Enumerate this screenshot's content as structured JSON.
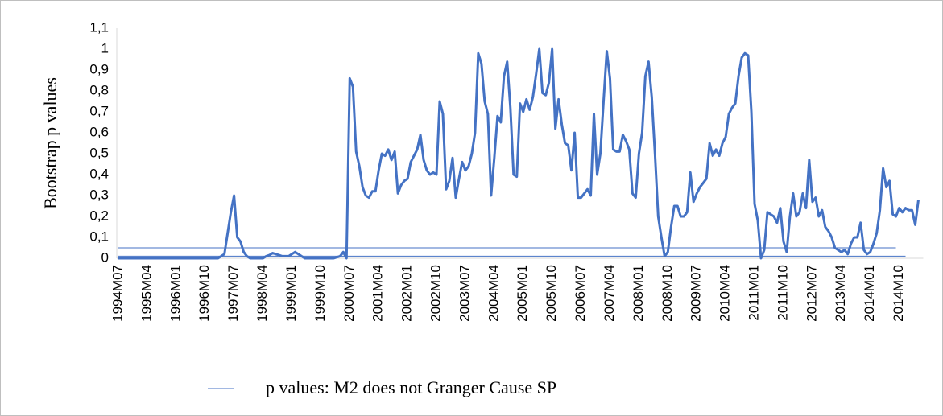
{
  "chart_data": {
    "type": "line",
    "y_label": "Bootstrap p values",
    "categories": [
      "1994M07",
      null,
      null,
      null,
      null,
      null,
      null,
      null,
      null,
      "1995M04",
      null,
      null,
      null,
      null,
      null,
      null,
      null,
      null,
      "1996M01",
      null,
      null,
      null,
      null,
      null,
      null,
      null,
      null,
      "1996M10",
      null,
      null,
      null,
      null,
      null,
      null,
      null,
      null,
      "1997M07",
      null,
      null,
      null,
      null,
      null,
      null,
      null,
      null,
      "1998M04",
      null,
      null,
      null,
      null,
      null,
      null,
      null,
      null,
      "1999M01",
      null,
      null,
      null,
      null,
      null,
      null,
      null,
      null,
      "1999M10",
      null,
      null,
      null,
      null,
      null,
      null,
      null,
      null,
      "2000M07",
      null,
      null,
      null,
      null,
      null,
      null,
      null,
      null,
      "2001M04",
      null,
      null,
      null,
      null,
      null,
      null,
      null,
      null,
      "2002M01",
      null,
      null,
      null,
      null,
      null,
      null,
      null,
      null,
      "2002M10",
      null,
      null,
      null,
      null,
      null,
      null,
      null,
      null,
      "2003M07",
      null,
      null,
      null,
      null,
      null,
      null,
      null,
      null,
      "2004M04",
      null,
      null,
      null,
      null,
      null,
      null,
      null,
      null,
      "2005M01",
      null,
      null,
      null,
      null,
      null,
      null,
      null,
      null,
      "2005M10",
      null,
      null,
      null,
      null,
      null,
      null,
      null,
      null,
      "2006M07",
      null,
      null,
      null,
      null,
      null,
      null,
      null,
      null,
      "2007M04",
      null,
      null,
      null,
      null,
      null,
      null,
      null,
      null,
      "2008M01",
      null,
      null,
      null,
      null,
      null,
      null,
      null,
      null,
      "2008M10",
      null,
      null,
      null,
      null,
      null,
      null,
      null,
      null,
      "2009M07",
      null,
      null,
      null,
      null,
      null,
      null,
      null,
      null,
      "2010M04",
      null,
      null,
      null,
      null,
      null,
      null,
      null,
      null,
      "2011M01",
      null,
      null,
      null,
      null,
      null,
      null,
      null,
      null,
      "2011M10",
      null,
      null,
      null,
      null,
      null,
      null,
      null,
      null,
      "2012M07",
      null,
      null,
      null,
      null,
      null,
      null,
      null,
      null,
      "2013M04",
      null,
      null,
      null,
      null,
      null,
      null,
      null,
      null,
      "2014M01",
      null,
      null,
      null,
      null,
      null,
      null,
      null,
      null,
      "2014M10",
      null,
      null,
      null,
      null,
      null,
      null
    ],
    "series": [
      {
        "name": "p values: M2 does not Granger Cause SP",
        "color": "#4472c4",
        "values": [
          0,
          0,
          0,
          0,
          0,
          0,
          0,
          0,
          0,
          0,
          0,
          0,
          0,
          0,
          0,
          0,
          0,
          0,
          0,
          0,
          0,
          0,
          0,
          0,
          0,
          0,
          0,
          0,
          0,
          0,
          0,
          0,
          0.01,
          0.02,
          0.12,
          0.22,
          0.3,
          0.1,
          0.08,
          0.03,
          0.01,
          0,
          0,
          0,
          0,
          0,
          0.01,
          0.015,
          0.025,
          0.02,
          0.015,
          0.01,
          0.01,
          0.01,
          0.02,
          0.03,
          0.02,
          0.01,
          0,
          0,
          0,
          0,
          0,
          0,
          0,
          0,
          0,
          0,
          0.005,
          0.01,
          0.03,
          0,
          0.86,
          0.82,
          0.51,
          0.44,
          0.34,
          0.3,
          0.29,
          0.32,
          0.32,
          0.42,
          0.5,
          0.49,
          0.52,
          0.47,
          0.51,
          0.31,
          0.35,
          0.37,
          0.38,
          0.46,
          0.49,
          0.52,
          0.59,
          0.47,
          0.42,
          0.4,
          0.41,
          0.4,
          0.75,
          0.69,
          0.33,
          0.37,
          0.48,
          0.29,
          0.38,
          0.46,
          0.42,
          0.44,
          0.5,
          0.6,
          0.98,
          0.93,
          0.75,
          0.69,
          0.3,
          0.48,
          0.68,
          0.65,
          0.87,
          0.94,
          0.72,
          0.4,
          0.39,
          0.74,
          0.7,
          0.76,
          0.71,
          0.77,
          0.88,
          1.0,
          0.79,
          0.78,
          0.84,
          1.0,
          0.62,
          0.76,
          0.64,
          0.55,
          0.54,
          0.42,
          0.6,
          0.29,
          0.29,
          0.31,
          0.33,
          0.3,
          0.69,
          0.4,
          0.5,
          0.75,
          0.99,
          0.86,
          0.52,
          0.51,
          0.51,
          0.59,
          0.56,
          0.52,
          0.31,
          0.29,
          0.5,
          0.6,
          0.87,
          0.94,
          0.77,
          0.5,
          0.2,
          0.1,
          0.01,
          0.03,
          0.15,
          0.25,
          0.25,
          0.2,
          0.2,
          0.22,
          0.41,
          0.27,
          0.31,
          0.34,
          0.36,
          0.38,
          0.55,
          0.49,
          0.52,
          0.49,
          0.55,
          0.58,
          0.69,
          0.72,
          0.74,
          0.87,
          0.96,
          0.98,
          0.97,
          0.7,
          0.26,
          0.18,
          0.0,
          0.04,
          0.22,
          0.21,
          0.2,
          0.17,
          0.24,
          0.08,
          0.03,
          0.2,
          0.31,
          0.2,
          0.22,
          0.31,
          0.24,
          0.47,
          0.27,
          0.29,
          0.2,
          0.23,
          0.15,
          0.13,
          0.1,
          0.05,
          0.04,
          0.03,
          0.04,
          0.02,
          0.07,
          0.1,
          0.1,
          0.17,
          0.04,
          0.02,
          0.03,
          0.07,
          0.12,
          0.23,
          0.43,
          0.34,
          0.37,
          0.21,
          0.2,
          0.24,
          0.22,
          0.24,
          0.23,
          0.23,
          0.16,
          0.28
        ]
      }
    ],
    "reference_lines": [
      0.05,
      0.01
    ],
    "ylim": [
      0,
      1.1
    ],
    "yticks": [
      0,
      {
        "value": 0.1,
        "label": "0,1"
      },
      {
        "value": 0.2,
        "label": "0,2"
      },
      {
        "value": 0.3,
        "label": "0,3"
      },
      {
        "value": 0.4,
        "label": "0,4"
      },
      {
        "value": 0.5,
        "label": "0,5"
      },
      {
        "value": 0.6,
        "label": "0,6"
      },
      {
        "value": 0.7,
        "label": "0,7"
      },
      {
        "value": 0.8,
        "label": "0,8"
      },
      {
        "value": 0.9,
        "label": "0,9"
      },
      1,
      {
        "value": 1.1,
        "label": "1,1"
      }
    ],
    "grid": false,
    "legend": "bottom"
  }
}
